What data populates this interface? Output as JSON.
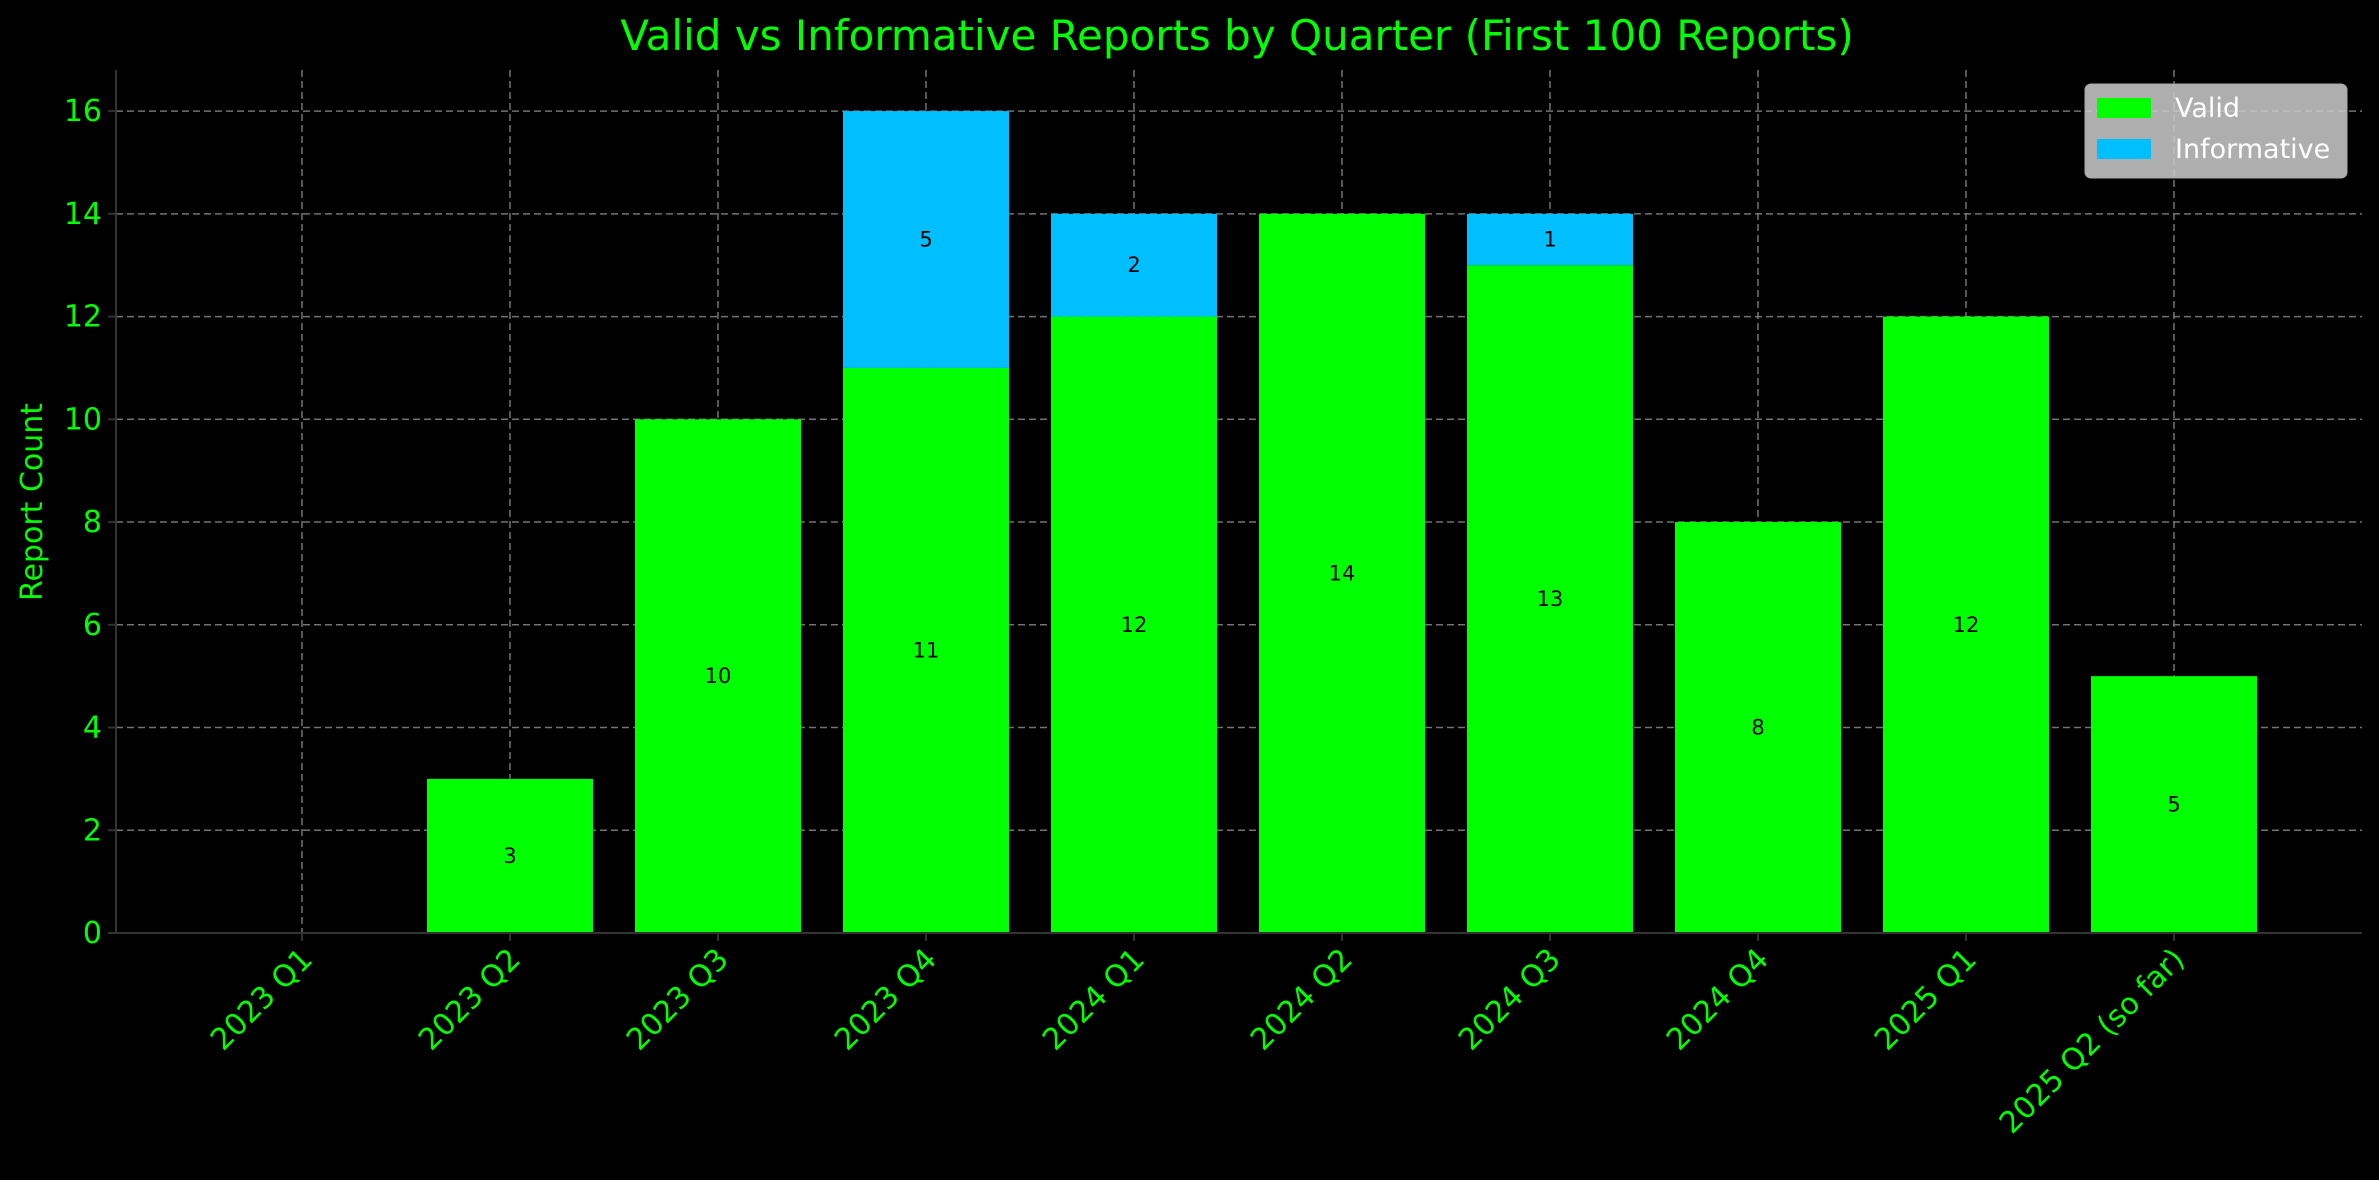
{
  "chart_data": {
    "type": "bar",
    "stacked": true,
    "title": "Valid vs Informative Reports by Quarter (First 100 Reports)",
    "xlabel": "",
    "ylabel": "Report Count",
    "ylim": [
      0,
      16.8
    ],
    "yticks": [
      0,
      2,
      4,
      6,
      8,
      10,
      12,
      14,
      16
    ],
    "grid": true,
    "legend_position": "top-right",
    "categories": [
      "2023 Q1",
      "2023 Q2",
      "2023 Q3",
      "2023 Q4",
      "2024 Q1",
      "2024 Q2",
      "2024 Q3",
      "2024 Q4",
      "2025 Q1",
      "2025 Q2 (so far)"
    ],
    "series": [
      {
        "name": "Valid",
        "color": "#00ff00",
        "values": [
          0,
          3,
          10,
          11,
          12,
          14,
          13,
          8,
          12,
          5
        ]
      },
      {
        "name": "Informative",
        "color": "#00bfff",
        "values": [
          0,
          0,
          0,
          5,
          2,
          0,
          1,
          0,
          0,
          0
        ]
      }
    ],
    "colors": {
      "background": "#000000",
      "text": "#00ff00",
      "grid": "#808080",
      "axis": "#333333",
      "data_label": "#000000",
      "legend_bg": "#cccccc",
      "legend_text": "#ffffff"
    }
  }
}
